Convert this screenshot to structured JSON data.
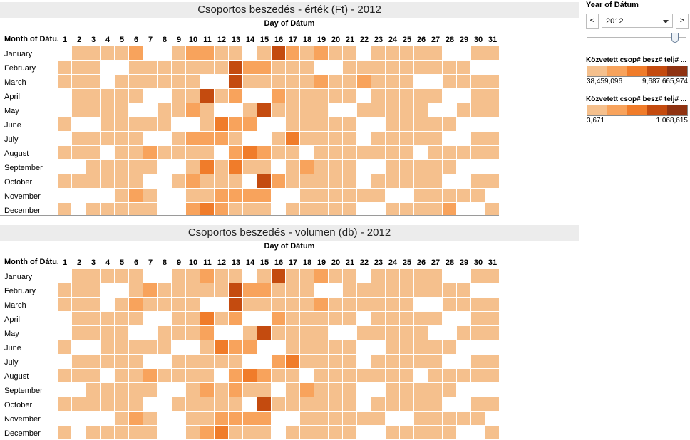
{
  "palette": [
    "#f5c08d",
    "#f8a35c",
    "#f07c2a",
    "#c44b0f",
    "#8f3312"
  ],
  "months": [
    "January",
    "February",
    "March",
    "April",
    "May",
    "June",
    "July",
    "August",
    "September",
    "October",
    "November",
    "December"
  ],
  "days": [
    "1",
    "2",
    "3",
    "4",
    "5",
    "6",
    "7",
    "8",
    "9",
    "10",
    "11",
    "12",
    "13",
    "14",
    "15",
    "16",
    "17",
    "18",
    "19",
    "20",
    "21",
    "22",
    "23",
    "24",
    "25",
    "26",
    "27",
    "28",
    "29",
    "30",
    "31"
  ],
  "sidebar": {
    "filter_title": "Year of Dátum",
    "year_value": "2012",
    "prev_label": "<",
    "next_label": ">",
    "legend1": {
      "title": "Közvetett csop# besz# telj# ...",
      "min": "38,459,096",
      "max": "9,687,665,974"
    },
    "legend2": {
      "title": "Közvetett csop# besz# telj# ...",
      "min": "3,671",
      "max": "1,068,615"
    }
  },
  "chart_data": [
    {
      "type": "heatmap",
      "title": "Csoportos beszedés - érték (Ft) - 2012",
      "xlabel": "Day of Dátum",
      "ylabel": "Month of Dátu..",
      "note": "Values are color classes 0-4 (light to dark); null = no data",
      "rows": [
        [
          null,
          0,
          0,
          0,
          0,
          1,
          null,
          null,
          0,
          1,
          1,
          0,
          0,
          null,
          0,
          3,
          1,
          0,
          1,
          0,
          0,
          null,
          0,
          0,
          0,
          0,
          0,
          null,
          null,
          0,
          0
        ],
        [
          0,
          0,
          0,
          null,
          null,
          0,
          0,
          0,
          0,
          0,
          0,
          0,
          3,
          1,
          1,
          0,
          0,
          0,
          null,
          null,
          0,
          0,
          0,
          0,
          0,
          0,
          0,
          0,
          0,
          null,
          null
        ],
        [
          0,
          0,
          0,
          null,
          0,
          0,
          0,
          0,
          0,
          0,
          null,
          null,
          3,
          0,
          0,
          0,
          0,
          0,
          1,
          0,
          0,
          1,
          0,
          0,
          0,
          null,
          null,
          0,
          0,
          0,
          0
        ],
        [
          null,
          0,
          0,
          0,
          0,
          0,
          null,
          null,
          0,
          0,
          3,
          0,
          1,
          null,
          null,
          1,
          0,
          0,
          0,
          0,
          0,
          null,
          0,
          0,
          0,
          0,
          0,
          null,
          null,
          0,
          0
        ],
        [
          null,
          0,
          0,
          0,
          0,
          null,
          null,
          0,
          0,
          1,
          0,
          null,
          null,
          0,
          3,
          0,
          0,
          0,
          0,
          null,
          null,
          0,
          0,
          0,
          0,
          0,
          null,
          null,
          0,
          0,
          0
        ],
        [
          0,
          null,
          null,
          0,
          0,
          0,
          0,
          0,
          null,
          null,
          0,
          2,
          1,
          1,
          null,
          null,
          0,
          0,
          0,
          0,
          0,
          null,
          null,
          0,
          0,
          0,
          0,
          0,
          null,
          null,
          null
        ],
        [
          null,
          0,
          0,
          0,
          0,
          0,
          null,
          null,
          0,
          1,
          1,
          1,
          0,
          null,
          null,
          0,
          2,
          0,
          0,
          0,
          0,
          null,
          0,
          0,
          0,
          0,
          0,
          null,
          null,
          0,
          0
        ],
        [
          0,
          0,
          0,
          null,
          0,
          0,
          1,
          0,
          0,
          0,
          0,
          null,
          1,
          2,
          1,
          0,
          0,
          null,
          0,
          0,
          0,
          0,
          0,
          0,
          0,
          null,
          0,
          0,
          0,
          0,
          0
        ],
        [
          null,
          null,
          0,
          0,
          0,
          0,
          0,
          null,
          null,
          0,
          2,
          0,
          2,
          0,
          0,
          null,
          0,
          1,
          0,
          0,
          0,
          null,
          null,
          0,
          0,
          0,
          0,
          0,
          null,
          null,
          null
        ],
        [
          0,
          0,
          0,
          0,
          0,
          0,
          null,
          null,
          0,
          1,
          0,
          0,
          0,
          null,
          3,
          1,
          0,
          0,
          0,
          0,
          0,
          null,
          0,
          0,
          0,
          0,
          0,
          null,
          null,
          0,
          0
        ],
        [
          null,
          null,
          null,
          null,
          0,
          1,
          0,
          null,
          null,
          0,
          0,
          1,
          1,
          1,
          1,
          null,
          null,
          0,
          0,
          0,
          0,
          0,
          0,
          null,
          null,
          0,
          0,
          0,
          0,
          0,
          null
        ],
        [
          0,
          null,
          0,
          0,
          0,
          0,
          0,
          null,
          null,
          1,
          2,
          1,
          0,
          0,
          0,
          null,
          0,
          0,
          0,
          0,
          0,
          null,
          null,
          0,
          0,
          0,
          0,
          1,
          null,
          null,
          0
        ]
      ]
    },
    {
      "type": "heatmap",
      "title": "Csoportos beszedés - volumen (db) - 2012",
      "xlabel": "Day of Dátum",
      "ylabel": "Month of Dátu..",
      "note": "Values are color classes 0-4 (light to dark); null = no data",
      "rows": [
        [
          null,
          0,
          0,
          0,
          0,
          0,
          null,
          null,
          0,
          0,
          1,
          0,
          0,
          null,
          0,
          3,
          0,
          0,
          1,
          0,
          0,
          null,
          0,
          0,
          0,
          0,
          0,
          null,
          null,
          0,
          0
        ],
        [
          0,
          0,
          0,
          null,
          null,
          0,
          1,
          0,
          0,
          0,
          0,
          0,
          3,
          1,
          1,
          0,
          0,
          0,
          null,
          null,
          0,
          0,
          0,
          0,
          0,
          0,
          0,
          0,
          0,
          null,
          null
        ],
        [
          0,
          0,
          0,
          null,
          0,
          1,
          0,
          0,
          0,
          0,
          null,
          null,
          3,
          0,
          0,
          0,
          0,
          0,
          1,
          0,
          0,
          0,
          0,
          0,
          0,
          null,
          null,
          0,
          0,
          0,
          0
        ],
        [
          null,
          0,
          0,
          0,
          0,
          0,
          null,
          null,
          0,
          0,
          2,
          0,
          1,
          null,
          null,
          1,
          0,
          0,
          0,
          0,
          0,
          null,
          0,
          0,
          0,
          0,
          0,
          null,
          null,
          0,
          0
        ],
        [
          null,
          0,
          0,
          0,
          0,
          null,
          null,
          0,
          0,
          0,
          1,
          null,
          null,
          0,
          3,
          0,
          0,
          0,
          0,
          null,
          null,
          0,
          0,
          0,
          0,
          0,
          null,
          null,
          0,
          0,
          0
        ],
        [
          0,
          null,
          null,
          0,
          0,
          0,
          0,
          0,
          null,
          null,
          0,
          2,
          1,
          1,
          null,
          null,
          0,
          0,
          0,
          0,
          0,
          null,
          null,
          0,
          0,
          0,
          0,
          0,
          null,
          null,
          null
        ],
        [
          null,
          0,
          0,
          0,
          0,
          0,
          null,
          null,
          0,
          0,
          0,
          0,
          0,
          null,
          null,
          1,
          2,
          0,
          0,
          0,
          0,
          null,
          0,
          0,
          0,
          0,
          0,
          null,
          null,
          0,
          0
        ],
        [
          0,
          0,
          0,
          null,
          0,
          0,
          1,
          0,
          0,
          0,
          0,
          null,
          1,
          2,
          1,
          0,
          0,
          null,
          0,
          0,
          0,
          0,
          0,
          0,
          0,
          null,
          0,
          0,
          0,
          0,
          0
        ],
        [
          null,
          null,
          0,
          0,
          0,
          0,
          0,
          null,
          null,
          0,
          1,
          0,
          1,
          0,
          0,
          null,
          0,
          1,
          0,
          0,
          0,
          null,
          null,
          0,
          0,
          0,
          0,
          0,
          null,
          null,
          null
        ],
        [
          0,
          0,
          0,
          0,
          0,
          0,
          null,
          null,
          0,
          0,
          0,
          0,
          0,
          null,
          3,
          0,
          0,
          0,
          0,
          0,
          0,
          null,
          0,
          0,
          0,
          0,
          0,
          null,
          null,
          0,
          0
        ],
        [
          null,
          null,
          null,
          null,
          0,
          1,
          0,
          null,
          null,
          0,
          0,
          1,
          1,
          1,
          1,
          null,
          null,
          0,
          0,
          0,
          0,
          0,
          0,
          null,
          null,
          0,
          0,
          0,
          0,
          0,
          null
        ],
        [
          0,
          null,
          0,
          0,
          0,
          0,
          0,
          null,
          null,
          0,
          1,
          2,
          0,
          0,
          0,
          null,
          0,
          0,
          0,
          0,
          0,
          null,
          null,
          0,
          0,
          0,
          0,
          0,
          null,
          null,
          0
        ]
      ]
    }
  ]
}
